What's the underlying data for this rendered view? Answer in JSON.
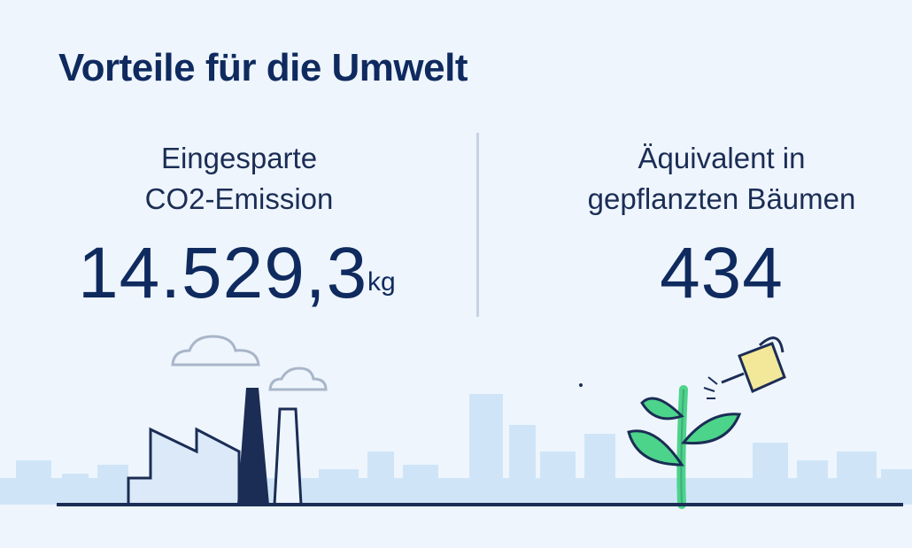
{
  "header": {
    "title": "Vorteile für die Umwelt"
  },
  "co2": {
    "label_line1": "Eingesparte",
    "label_line2": "CO2-Emission",
    "value": "14.529,3",
    "unit": "kg"
  },
  "trees": {
    "label_line1": "Äquivalent in",
    "label_line2": "gepflanzten Bäumen",
    "value": "434"
  },
  "illustration": {
    "left_icon": "factory-icon",
    "right_icon": "watering-plant-icon",
    "colors": {
      "skyline": "#cfe5f7",
      "ground": "#1b2d55",
      "leaf": "#4cd48a",
      "can": "#f3e89a"
    }
  }
}
